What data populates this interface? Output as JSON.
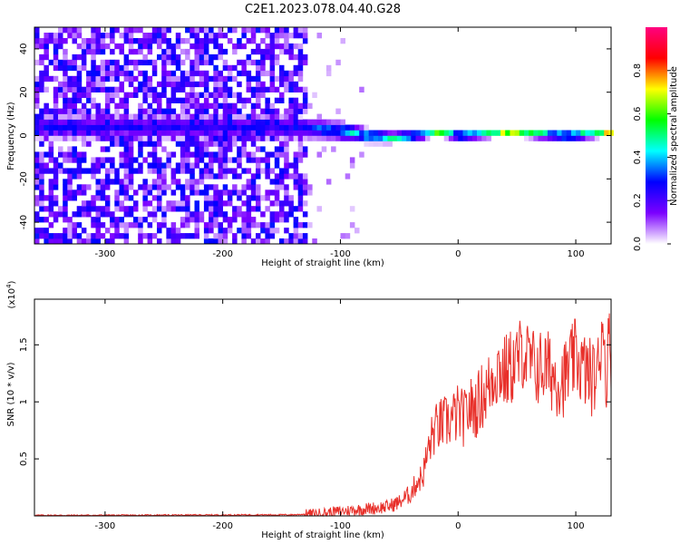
{
  "figure": {
    "title": "C2E1.2023.078.04.40.G28"
  },
  "chart_data": [
    {
      "type": "heatmap",
      "title": "C2E1.2023.078.04.40.G28",
      "xlabel": "Height of straight line (km)",
      "ylabel": "Frequency (Hz)",
      "xlim": [
        -360,
        130
      ],
      "ylim": [
        -50,
        50
      ],
      "x_ticks": [
        -300,
        -200,
        -100,
        0,
        100
      ],
      "y_ticks": [
        -40,
        -20,
        0,
        20,
        40
      ],
      "colorbar": {
        "label": "Normalized spectral amplitude",
        "range": [
          0.0,
          1.0
        ],
        "ticks": [
          0.0,
          0.2,
          0.4,
          0.6,
          0.8
        ],
        "colormap": [
          "#ffffff",
          "#7b00ff",
          "#0000ff",
          "#00ffff",
          "#00ff00",
          "#ffff00",
          "#ff0000",
          "#ff0080"
        ]
      },
      "description_of_signal": {
        "noise_region_x": [
          -360,
          -130
        ],
        "noise_amplitude_range": [
          0.05,
          0.3
        ],
        "band_center_freq": [
          [
            -150,
            4
          ],
          [
            -120,
            3
          ],
          [
            -100,
            2
          ],
          [
            -80,
            0
          ],
          [
            -60,
            -1
          ],
          [
            -40,
            0
          ],
          [
            -20,
            1
          ],
          [
            0,
            0
          ],
          [
            40,
            1
          ],
          [
            90,
            0
          ],
          [
            130,
            1
          ]
        ],
        "band_halfwidth_hz": [
          [
            -150,
            6
          ],
          [
            -100,
            5
          ],
          [
            -60,
            3
          ],
          [
            -30,
            2
          ],
          [
            130,
            2
          ]
        ],
        "band_peak_amplitude": [
          [
            -150,
            0.3
          ],
          [
            -100,
            0.5
          ],
          [
            -60,
            0.6
          ],
          [
            -30,
            0.75
          ],
          [
            0,
            0.85
          ],
          [
            130,
            0.95
          ]
        ]
      }
    },
    {
      "type": "line",
      "xlabel": "Height of straight line (km)",
      "ylabel": "SNR (10 * v/v)",
      "y_multiplier_label": "(x10",
      "y_multiplier_exp": "4",
      "y_multiplier_close": ")",
      "xlim": [
        -360,
        130
      ],
      "ylim": [
        0.0,
        1.9
      ],
      "x_ticks": [
        -300,
        -200,
        -100,
        0,
        100
      ],
      "y_ticks": [
        0.5,
        1.0,
        1.5
      ],
      "color": "#e8302a",
      "series": [
        {
          "x": [
            -360,
            -300,
            -200,
            -140,
            -120,
            -100,
            -80,
            -60,
            -50,
            -40,
            -35,
            -30,
            -26,
            -22,
            -20,
            -15,
            -10,
            -5,
            0,
            5,
            10,
            15,
            20,
            25,
            30,
            35,
            40,
            45,
            50,
            55,
            60,
            65,
            70,
            75,
            80,
            85,
            90,
            95,
            100,
            105,
            110,
            115,
            120,
            123,
            125,
            128,
            130
          ],
          "y": [
            0.005,
            0.005,
            0.008,
            0.01,
            0.02,
            0.04,
            0.06,
            0.08,
            0.12,
            0.2,
            0.3,
            0.35,
            0.55,
            0.7,
            0.75,
            0.8,
            0.82,
            0.85,
            0.9,
            0.85,
            0.95,
            0.95,
            1.05,
            1.1,
            1.25,
            1.3,
            1.25,
            1.3,
            1.35,
            1.45,
            1.35,
            1.3,
            1.3,
            1.3,
            1.25,
            1.2,
            1.2,
            1.3,
            1.4,
            1.3,
            1.25,
            1.2,
            1.3,
            1.85,
            1.2,
            1.5,
            1.45
          ]
        }
      ]
    }
  ]
}
